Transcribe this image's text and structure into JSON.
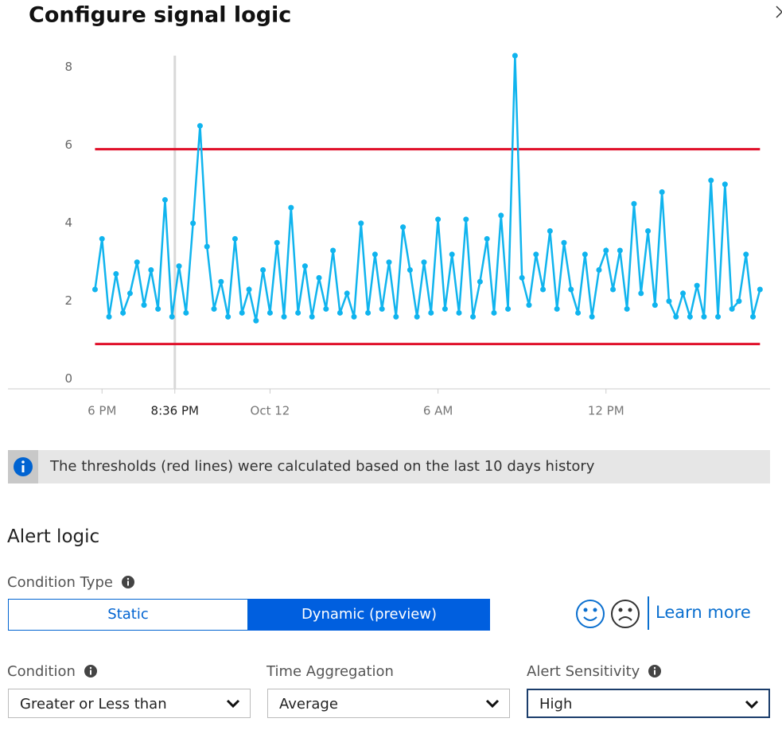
{
  "header": {
    "title": "Configure signal logic"
  },
  "chart_data": {
    "type": "line",
    "color": "#10b4ee",
    "x": [
      17.75,
      18,
      18.25,
      18.5,
      18.75,
      19,
      19.25,
      19.5,
      19.75,
      20,
      20.25,
      20.5,
      20.75,
      21,
      21.25,
      21.5,
      21.75,
      22,
      22.25,
      22.5,
      22.75,
      23,
      23.25,
      23.5,
      23.75,
      24,
      24.25,
      24.5,
      24.75,
      25,
      25.25,
      25.5,
      25.75,
      26,
      26.25,
      26.5,
      26.75,
      27,
      27.25,
      27.5,
      27.75,
      28,
      28.25,
      28.5,
      28.75,
      29,
      29.25,
      29.5,
      29.75,
      30,
      30.25,
      30.5,
      30.75,
      31,
      31.25,
      31.5,
      31.75,
      32,
      32.25,
      32.5,
      32.75,
      33,
      33.25,
      33.5,
      33.75,
      34,
      34.25,
      34.5,
      34.75,
      35,
      35.25,
      35.5,
      35.75,
      36,
      36.25,
      36.5,
      36.75,
      37,
      37.25,
      37.5,
      37.75,
      38,
      38.25,
      38.5,
      38.75,
      39,
      39.25,
      39.5,
      39.75,
      40,
      40.25,
      40.5,
      40.75,
      41,
      41.25,
      41.5
    ],
    "values": [
      2.3,
      3.6,
      1.6,
      2.7,
      1.7,
      2.2,
      3.0,
      1.9,
      2.8,
      1.8,
      4.6,
      1.6,
      2.9,
      1.7,
      4.0,
      6.5,
      3.4,
      1.8,
      2.5,
      1.6,
      3.6,
      1.7,
      2.3,
      1.5,
      2.8,
      1.7,
      3.5,
      1.6,
      4.4,
      1.7,
      2.9,
      1.6,
      2.6,
      1.8,
      3.3,
      1.7,
      2.2,
      1.6,
      4.0,
      1.7,
      3.2,
      1.8,
      3.0,
      1.6,
      3.9,
      2.8,
      1.6,
      3.0,
      1.7,
      4.1,
      1.8,
      3.2,
      1.7,
      4.1,
      1.6,
      2.5,
      3.6,
      1.7,
      4.2,
      1.8,
      8.3,
      2.6,
      1.9,
      3.2,
      2.3,
      3.8,
      1.8,
      3.5,
      2.3,
      1.7,
      3.2,
      1.6,
      2.8,
      3.3,
      2.3,
      3.3,
      1.8,
      4.5,
      2.2,
      3.8,
      1.9,
      4.8,
      2.0,
      1.6,
      2.2,
      1.6,
      2.4,
      1.6,
      5.1,
      1.6,
      5.0,
      1.8,
      2.0,
      3.2,
      1.6,
      2.3
    ],
    "xlim": [
      14.64,
      41.86
    ],
    "xticks": [
      {
        "value": 18,
        "label": "6 PM"
      },
      {
        "value": 20.6,
        "label": "8:36 PM"
      },
      {
        "value": 24,
        "label": "Oct 12"
      },
      {
        "value": 30,
        "label": "6 AM"
      },
      {
        "value": 36,
        "label": "12 PM"
      }
    ],
    "ylim": [
      -0.25,
      8.3
    ],
    "yticks": [
      0,
      2,
      4,
      6,
      8
    ],
    "cursor_x": 20.6,
    "thresholds": [
      {
        "value": 5.9,
        "color": "#e0102a"
      },
      {
        "value": 0.9,
        "color": "#e0102a"
      }
    ]
  },
  "info_banner": {
    "text": "The thresholds (red lines) were calculated based on the last 10 days history"
  },
  "alert_logic": {
    "title": "Alert logic",
    "condition_type_label": "Condition Type",
    "options": [
      "Static",
      "Dynamic (preview)"
    ],
    "learn_more": "Learn more",
    "condition": {
      "label": "Condition",
      "value": "Greater or Less than"
    },
    "time_aggregation": {
      "label": "Time Aggregation",
      "value": "Average"
    },
    "alert_sensitivity": {
      "label": "Alert Sensitivity",
      "value": "High"
    }
  }
}
